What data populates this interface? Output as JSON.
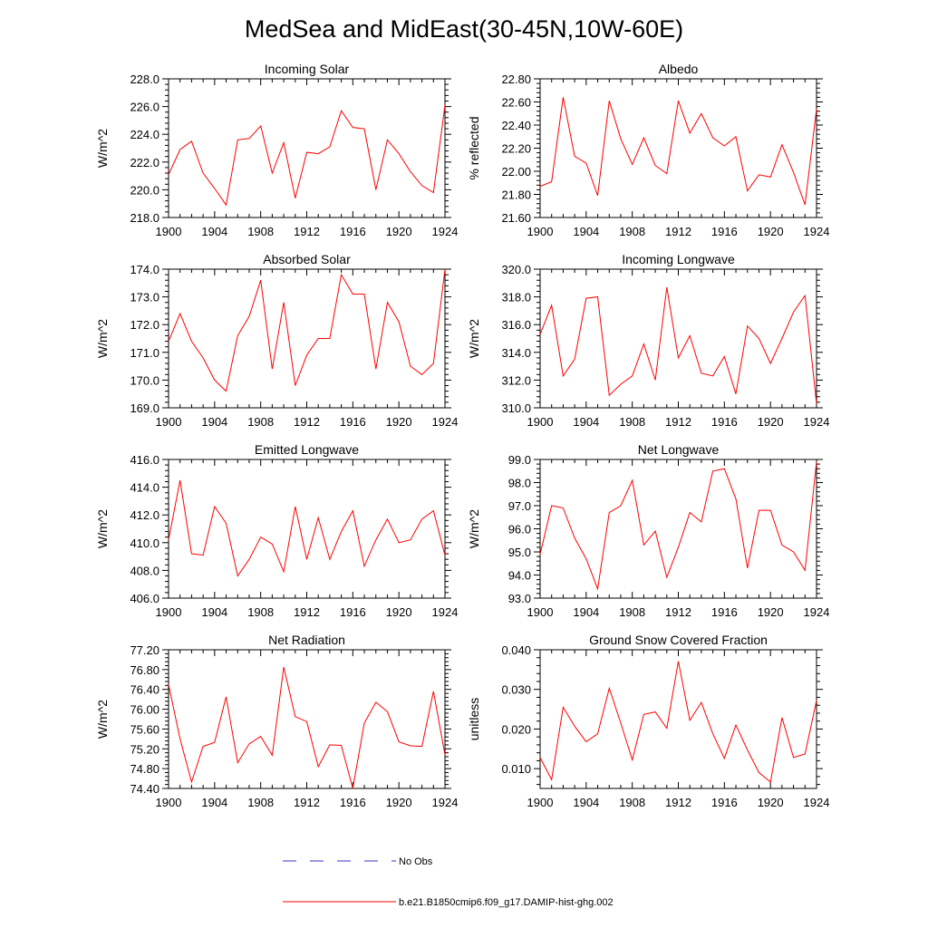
{
  "title": "MedSea and MidEast(30-45N,10W-60E)",
  "legend": {
    "items": [
      {
        "label": "No Obs",
        "color": "#3333cc",
        "dash": true
      },
      {
        "label": "b.e21.B1850cmip6.f09_g17.DAMIP-hist-ghg.002",
        "color": "#ff0000",
        "dash": false
      }
    ]
  },
  "chart_data": [
    {
      "type": "line",
      "title": "Incoming Solar",
      "ylabel": "W/m^2",
      "xlim": [
        1900,
        1924
      ],
      "ylim": [
        218.0,
        228.0
      ],
      "decimals": 1,
      "xticks": [
        1900,
        1904,
        1908,
        1912,
        1916,
        1920,
        1924
      ],
      "yticks": [
        218.0,
        220.0,
        222.0,
        224.0,
        226.0,
        228.0
      ],
      "x": [
        1900,
        1901,
        1902,
        1903,
        1904,
        1905,
        1906,
        1907,
        1908,
        1909,
        1910,
        1911,
        1912,
        1913,
        1914,
        1915,
        1916,
        1917,
        1918,
        1919,
        1920,
        1921,
        1922,
        1923,
        1924
      ],
      "series": [
        {
          "color": "#ff0000",
          "values": [
            221.1,
            222.9,
            223.5,
            221.2,
            220.1,
            218.9,
            223.6,
            223.7,
            224.6,
            221.2,
            223.4,
            219.4,
            222.7,
            222.6,
            223.1,
            225.7,
            224.5,
            224.4,
            220.0,
            223.6,
            222.6,
            221.3,
            220.3,
            219.8,
            226.1
          ]
        }
      ]
    },
    {
      "type": "line",
      "title": "Albedo",
      "ylabel": "% reflected",
      "xlim": [
        1900,
        1924
      ],
      "ylim": [
        21.6,
        22.8
      ],
      "decimals": 2,
      "xticks": [
        1900,
        1904,
        1908,
        1912,
        1916,
        1920,
        1924
      ],
      "yticks": [
        21.6,
        21.8,
        22.0,
        22.2,
        22.4,
        22.6,
        22.8
      ],
      "x": [
        1900,
        1901,
        1902,
        1903,
        1904,
        1905,
        1906,
        1907,
        1908,
        1909,
        1910,
        1911,
        1912,
        1913,
        1914,
        1915,
        1916,
        1917,
        1918,
        1919,
        1920,
        1921,
        1922,
        1923,
        1924
      ],
      "series": [
        {
          "color": "#ff0000",
          "values": [
            21.87,
            21.91,
            22.64,
            22.13,
            22.07,
            21.79,
            22.61,
            22.28,
            22.06,
            22.29,
            22.05,
            21.98,
            22.61,
            22.33,
            22.5,
            22.29,
            22.22,
            22.3,
            21.83,
            21.97,
            21.95,
            22.23,
            21.99,
            21.71,
            22.54
          ]
        }
      ]
    },
    {
      "type": "line",
      "title": "Absorbed Solar",
      "ylabel": "W/m^2",
      "xlim": [
        1900,
        1924
      ],
      "ylim": [
        169.0,
        174.0
      ],
      "decimals": 1,
      "xticks": [
        1900,
        1904,
        1908,
        1912,
        1916,
        1920,
        1924
      ],
      "yticks": [
        169.0,
        170.0,
        171.0,
        172.0,
        173.0,
        174.0
      ],
      "x": [
        1900,
        1901,
        1902,
        1903,
        1904,
        1905,
        1906,
        1907,
        1908,
        1909,
        1910,
        1911,
        1912,
        1913,
        1914,
        1915,
        1916,
        1917,
        1918,
        1919,
        1920,
        1921,
        1922,
        1923,
        1924
      ],
      "series": [
        {
          "color": "#ff0000",
          "values": [
            171.4,
            172.4,
            171.4,
            170.8,
            170.0,
            169.6,
            171.6,
            172.3,
            173.6,
            170.4,
            172.8,
            169.8,
            170.9,
            171.5,
            171.5,
            173.8,
            173.1,
            173.1,
            170.4,
            172.8,
            172.1,
            170.5,
            170.2,
            170.6,
            174.0
          ]
        }
      ]
    },
    {
      "type": "line",
      "title": "Incoming Longwave",
      "ylabel": "W/m^2",
      "xlim": [
        1900,
        1924
      ],
      "ylim": [
        310.0,
        320.0
      ],
      "decimals": 1,
      "xticks": [
        1900,
        1904,
        1908,
        1912,
        1916,
        1920,
        1924
      ],
      "yticks": [
        310.0,
        312.0,
        314.0,
        316.0,
        318.0,
        320.0
      ],
      "x": [
        1900,
        1901,
        1902,
        1903,
        1904,
        1905,
        1906,
        1907,
        1908,
        1909,
        1910,
        1911,
        1912,
        1913,
        1914,
        1915,
        1916,
        1917,
        1918,
        1919,
        1920,
        1921,
        1922,
        1923,
        1924
      ],
      "series": [
        {
          "color": "#ff0000",
          "values": [
            315.3,
            317.4,
            312.3,
            313.5,
            317.9,
            318.0,
            310.9,
            311.7,
            312.3,
            314.6,
            312.0,
            318.7,
            313.6,
            315.2,
            312.5,
            312.3,
            313.7,
            311.0,
            315.9,
            315.0,
            313.2,
            315.0,
            316.9,
            318.1,
            310.3
          ]
        }
      ]
    },
    {
      "type": "line",
      "title": "Emitted Longwave",
      "ylabel": "W/m^2",
      "xlim": [
        1900,
        1924
      ],
      "ylim": [
        406.0,
        416.0
      ],
      "decimals": 1,
      "xticks": [
        1900,
        1904,
        1908,
        1912,
        1916,
        1920,
        1924
      ],
      "yticks": [
        406.0,
        408.0,
        410.0,
        412.0,
        414.0,
        416.0
      ],
      "x": [
        1900,
        1901,
        1902,
        1903,
        1904,
        1905,
        1906,
        1907,
        1908,
        1909,
        1910,
        1911,
        1912,
        1913,
        1914,
        1915,
        1916,
        1917,
        1918,
        1919,
        1920,
        1921,
        1922,
        1923,
        1924
      ],
      "series": [
        {
          "color": "#ff0000",
          "values": [
            410.2,
            414.5,
            409.2,
            409.1,
            412.6,
            411.4,
            407.6,
            408.8,
            410.4,
            409.9,
            407.9,
            412.6,
            408.8,
            411.8,
            408.8,
            410.8,
            412.3,
            408.3,
            410.2,
            411.7,
            410.0,
            410.2,
            411.7,
            412.3,
            409.1
          ]
        }
      ]
    },
    {
      "type": "line",
      "title": "Net Longwave",
      "ylabel": "W/m^2",
      "xlim": [
        1900,
        1924
      ],
      "ylim": [
        93.0,
        99.0
      ],
      "decimals": 1,
      "xticks": [
        1900,
        1904,
        1908,
        1912,
        1916,
        1920,
        1924
      ],
      "yticks": [
        93.0,
        94.0,
        95.0,
        96.0,
        97.0,
        98.0,
        99.0
      ],
      "x": [
        1900,
        1901,
        1902,
        1903,
        1904,
        1905,
        1906,
        1907,
        1908,
        1909,
        1910,
        1911,
        1912,
        1913,
        1914,
        1915,
        1916,
        1917,
        1918,
        1919,
        1920,
        1921,
        1922,
        1923,
        1924
      ],
      "series": [
        {
          "color": "#ff0000",
          "values": [
            94.9,
            97.0,
            96.9,
            95.6,
            94.7,
            93.4,
            96.7,
            97.0,
            98.1,
            95.3,
            95.9,
            93.9,
            95.2,
            96.7,
            96.3,
            98.5,
            98.6,
            97.3,
            94.3,
            96.8,
            96.8,
            95.3,
            95.0,
            94.2,
            98.9
          ]
        }
      ]
    },
    {
      "type": "line",
      "title": "Net Radiation",
      "ylabel": "W/m^2",
      "xlim": [
        1900,
        1924
      ],
      "ylim": [
        74.4,
        77.2
      ],
      "decimals": 2,
      "xticks": [
        1900,
        1904,
        1908,
        1912,
        1916,
        1920,
        1924
      ],
      "yticks": [
        74.4,
        74.8,
        75.2,
        75.6,
        76.0,
        76.4,
        76.8,
        77.2
      ],
      "x": [
        1900,
        1901,
        1902,
        1903,
        1904,
        1905,
        1906,
        1907,
        1908,
        1909,
        1910,
        1911,
        1912,
        1913,
        1914,
        1915,
        1916,
        1917,
        1918,
        1919,
        1920,
        1921,
        1922,
        1923,
        1924
      ],
      "series": [
        {
          "color": "#ff0000",
          "values": [
            76.5,
            75.4,
            74.53,
            75.25,
            75.33,
            76.25,
            74.92,
            75.3,
            75.45,
            75.07,
            76.85,
            75.85,
            75.75,
            74.84,
            75.28,
            75.27,
            74.4,
            75.72,
            76.14,
            75.95,
            75.34,
            75.26,
            75.25,
            76.36,
            75.08
          ]
        }
      ]
    },
    {
      "type": "line",
      "title": "Ground Snow Covered Fraction",
      "ylabel": "unitless",
      "xlim": [
        1900,
        1924
      ],
      "ylim": [
        0.005,
        0.04
      ],
      "decimals": 3,
      "xticks": [
        1900,
        1904,
        1908,
        1912,
        1916,
        1920,
        1924
      ],
      "yticks": [
        0.01,
        0.02,
        0.03,
        0.04
      ],
      "x": [
        1900,
        1901,
        1902,
        1903,
        1904,
        1905,
        1906,
        1907,
        1908,
        1909,
        1910,
        1911,
        1912,
        1913,
        1914,
        1915,
        1916,
        1917,
        1918,
        1919,
        1920,
        1921,
        1922,
        1923,
        1924
      ],
      "series": [
        {
          "color": "#ff0000",
          "values": [
            0.0128,
            0.0072,
            0.0255,
            0.0207,
            0.0168,
            0.0188,
            0.0303,
            0.0215,
            0.0122,
            0.0237,
            0.0243,
            0.0202,
            0.0371,
            0.0222,
            0.0267,
            0.0188,
            0.0126,
            0.021,
            0.0147,
            0.009,
            0.0066,
            0.0229,
            0.0128,
            0.0137,
            0.0272
          ]
        }
      ]
    }
  ]
}
